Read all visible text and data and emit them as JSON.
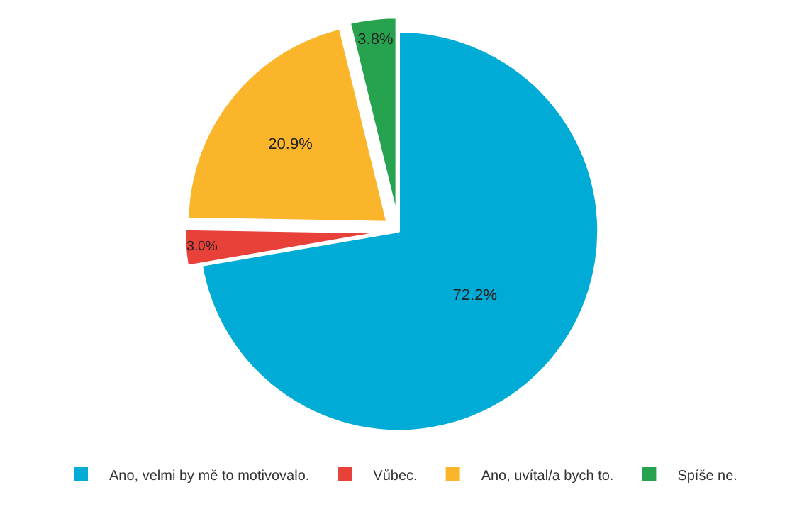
{
  "chart_data": {
    "type": "pie",
    "categories": [
      "Ano, velmi by mě to motivovalo.",
      "Vůbec.",
      "Ano, uvítal/a bych to.",
      "Spíše ne."
    ],
    "values": [
      72.2,
      3.0,
      20.9,
      3.8
    ],
    "value_labels": [
      "72.2%",
      "3.0%",
      "20.9%",
      "3.8%"
    ],
    "colors": [
      "#00acd6",
      "#e8413a",
      "#fbb52a",
      "#27a350"
    ],
    "legend": "bottom"
  }
}
